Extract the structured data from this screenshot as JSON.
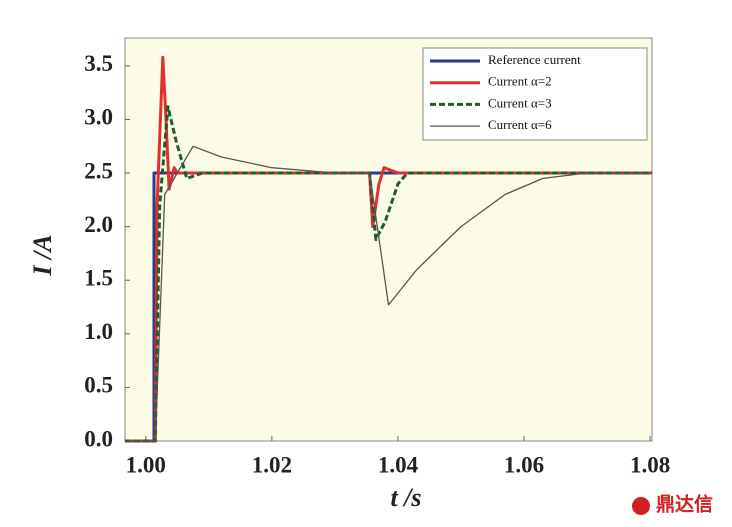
{
  "chart_data": {
    "type": "line",
    "x_label": "t /s",
    "y_label": "I /A",
    "xlim": [
      0.9967,
      1.0803
    ],
    "ylim": [
      0,
      3.76
    ],
    "xticks": [
      {
        "value": 1,
        "label": "1.00"
      },
      1.02,
      1.04,
      1.06,
      1.08
    ],
    "yticks": [
      {
        "value": 0,
        "label": "0.0"
      },
      0.5,
      {
        "value": 1,
        "label": "1.0"
      },
      1.5,
      {
        "value": 2,
        "label": "2.0"
      },
      2.5,
      {
        "value": 3,
        "label": "3.0"
      },
      3.5
    ],
    "legend": "top-right",
    "series": [
      {
        "name": "Reference current",
        "color": "#2b3990",
        "linestyle": "solid",
        "x": [
          0.9967,
          1.0013,
          1.0013,
          1.0803
        ],
        "values": [
          0,
          0,
          2.5,
          2.5
        ]
      },
      {
        "name": "Current α=2",
        "color": "#e0302e",
        "linestyle": "solid",
        "x": [
          0.9967,
          1.0015,
          1.0018,
          1.0027,
          1.0032,
          1.0037,
          1.0045,
          1.005,
          1.0355,
          1.036,
          1.037,
          1.0378,
          1.04,
          1.0803
        ],
        "values": [
          0,
          0,
          2.2,
          3.58,
          3.0,
          2.35,
          2.55,
          2.5,
          2.5,
          2.0,
          2.4,
          2.55,
          2.5,
          2.5
        ]
      },
      {
        "name": "Current α=3",
        "color": "#1f5c2c",
        "linestyle": "dashed",
        "x": [
          0.9967,
          1.0015,
          1.0022,
          1.0035,
          1.0048,
          1.0065,
          1.009,
          1.0355,
          1.0365,
          1.038,
          1.04,
          1.0415,
          1.0803
        ],
        "values": [
          0,
          0,
          2.2,
          3.12,
          2.8,
          2.45,
          2.5,
          2.5,
          1.88,
          2.05,
          2.4,
          2.5,
          2.5
        ]
      },
      {
        "name": "Current α=6",
        "color": "#555555",
        "linestyle": "thin",
        "x": [
          0.9967,
          1.0015,
          1.003,
          1.005,
          1.0075,
          1.012,
          1.02,
          1.03,
          1.0355,
          1.0385,
          1.043,
          1.05,
          1.057,
          1.063,
          1.07,
          1.0803
        ],
        "values": [
          0,
          0,
          2.3,
          2.5,
          2.75,
          2.65,
          2.55,
          2.5,
          2.5,
          1.27,
          1.6,
          2.0,
          2.3,
          2.45,
          2.5,
          2.5
        ]
      }
    ],
    "watermark": "鼎达信"
  }
}
